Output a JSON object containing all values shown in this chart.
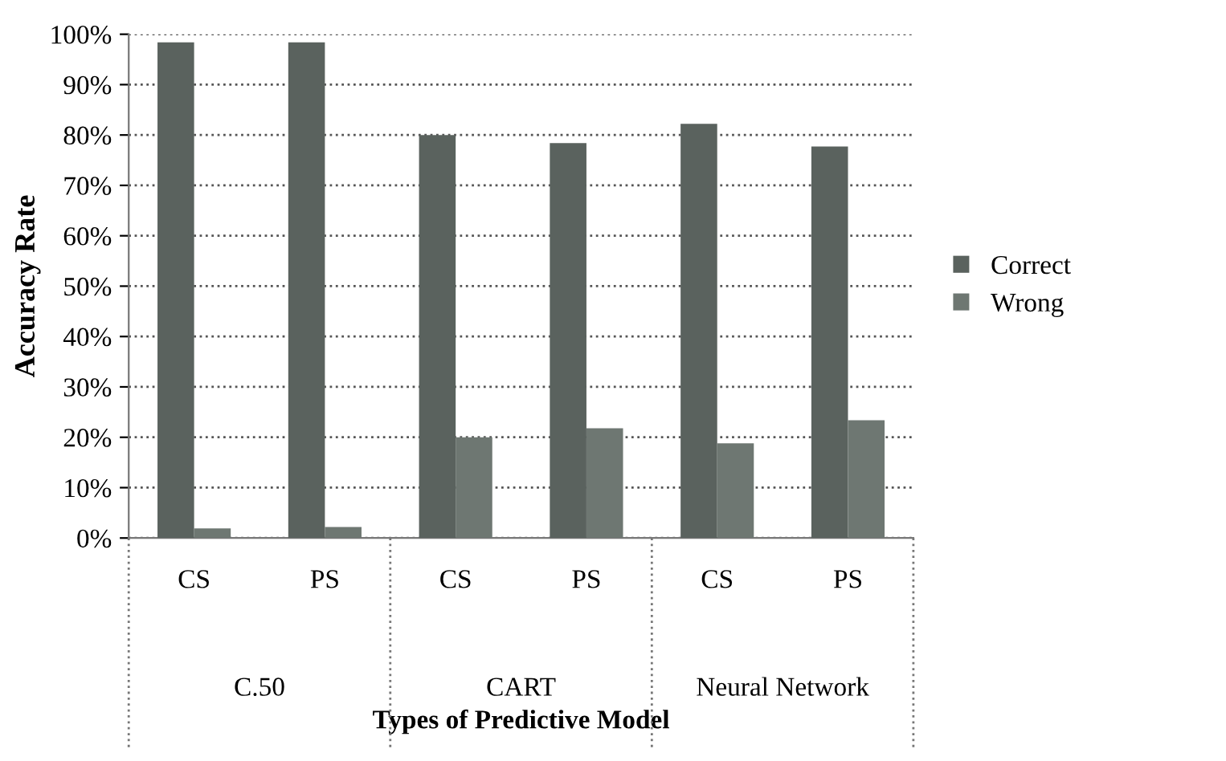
{
  "chart_data": {
    "type": "bar",
    "xlabel": "Types of Predictive Model",
    "ylabel": "Accuracy Rate",
    "categories": [
      "CS",
      "PS",
      "CS",
      "PS",
      "CS",
      "PS"
    ],
    "annotations": [
      "C.50",
      "CART",
      "Neural Network"
    ],
    "series": [
      {
        "name": "Correct",
        "color": "#5a625e",
        "values": [
          98.4,
          98.4,
          80,
          78.4,
          82.2,
          77.7
        ]
      },
      {
        "name": "Wrong",
        "color": "#6e7772",
        "values": [
          1.9,
          2.2,
          20,
          21.8,
          18.8,
          23.4
        ]
      }
    ],
    "ylim": [
      0,
      100
    ],
    "yticks": [
      {
        "value": 0,
        "label": "0%"
      },
      {
        "value": 10,
        "label": "10%"
      },
      {
        "value": 20,
        "label": "20%"
      },
      {
        "value": 30,
        "label": "30%"
      },
      {
        "value": 40,
        "label": "40%"
      },
      {
        "value": 50,
        "label": "50%"
      },
      {
        "value": 60,
        "label": "60%"
      },
      {
        "value": 70,
        "label": "70%"
      },
      {
        "value": 80,
        "label": "80%"
      },
      {
        "value": 90,
        "label": "90%"
      },
      {
        "value": 100,
        "label": "100%"
      }
    ],
    "grid": "y",
    "legend": "right"
  }
}
